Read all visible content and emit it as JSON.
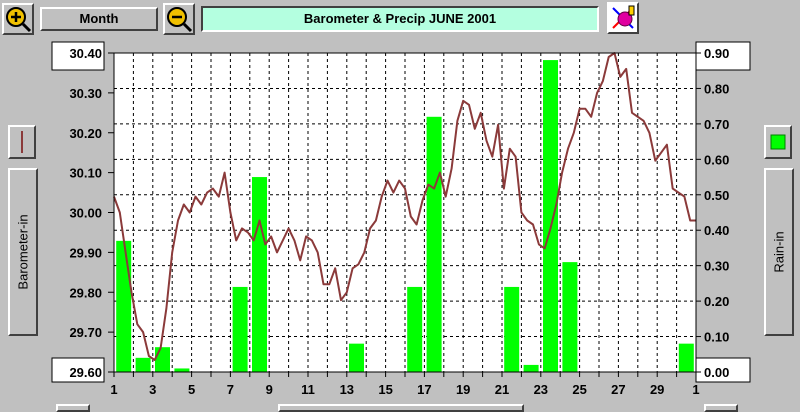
{
  "toolbar": {
    "zoom_in_icon": "zoom-in-magnifier-icon",
    "period_label": "Month",
    "zoom_out_icon": "zoom-out-magnifier-icon",
    "title": "Barometer & Precip  JUNE 2001",
    "paint_icon": "paint-palette-icon"
  },
  "side": {
    "left_label": "Barometer-in",
    "right_label": "Rain-in"
  },
  "colors": {
    "barometer": "#8b3a3a",
    "rain": "#00ff00",
    "title_bg": "#b4ffe0",
    "panel": "#c0c0c0",
    "plot_bg": "#ffffff"
  },
  "chart_data": {
    "type": "bar+line",
    "title": "Barometer & Precip  JUNE 2001",
    "x_tick_labels": [
      "1",
      "3",
      "5",
      "7",
      "9",
      "11",
      "13",
      "15",
      "17",
      "19",
      "21",
      "23",
      "25",
      "27",
      "29",
      "1"
    ],
    "xlim": [
      1,
      31
    ],
    "grid": true,
    "left_axis": {
      "label": "Barometer-in",
      "ylim": [
        29.6,
        30.4
      ],
      "tick_labels": [
        "30.40",
        "30.30",
        "30.20",
        "30.10",
        "30.00",
        "29.90",
        "29.80",
        "29.70",
        "29.60"
      ]
    },
    "right_axis": {
      "label": "Rain-in",
      "ylim": [
        0.0,
        0.9
      ],
      "tick_labels": [
        "0.90",
        "0.80",
        "0.70",
        "0.60",
        "0.50",
        "0.40",
        "0.30",
        "0.20",
        "0.10",
        "0.00"
      ]
    },
    "series": [
      {
        "type": "line",
        "axis": "left",
        "x": [
          1.0,
          1.3,
          1.6,
          1.9,
          2.2,
          2.5,
          2.8,
          3.1,
          3.4,
          3.7,
          4.0,
          4.3,
          4.6,
          4.9,
          5.2,
          5.5,
          5.8,
          6.1,
          6.4,
          6.7,
          7.0,
          7.3,
          7.6,
          7.9,
          8.2,
          8.5,
          8.8,
          9.1,
          9.4,
          9.7,
          10.0,
          10.3,
          10.6,
          10.9,
          11.2,
          11.5,
          11.8,
          12.1,
          12.4,
          12.7,
          13.0,
          13.3,
          13.6,
          13.9,
          14.2,
          14.5,
          14.8,
          15.1,
          15.4,
          15.7,
          16.0,
          16.3,
          16.6,
          16.9,
          17.2,
          17.5,
          17.8,
          18.1,
          18.4,
          18.7,
          19.0,
          19.3,
          19.6,
          19.9,
          20.2,
          20.5,
          20.8,
          21.1,
          21.4,
          21.7,
          22.0,
          22.3,
          22.6,
          22.9,
          23.2,
          23.5,
          23.8,
          24.1,
          24.4,
          24.7,
          25.0,
          25.3,
          25.6,
          25.9,
          26.2,
          26.5,
          26.8,
          27.1,
          27.4,
          27.7,
          28.0,
          28.3,
          28.6,
          28.9,
          29.2,
          29.5,
          29.8,
          30.1,
          30.4,
          30.7,
          31.0
        ],
        "y": [
          30.04,
          30.0,
          29.9,
          29.8,
          29.72,
          29.7,
          29.64,
          29.63,
          29.66,
          29.76,
          29.9,
          29.98,
          30.02,
          30.0,
          30.04,
          30.02,
          30.05,
          30.06,
          30.04,
          30.1,
          30.0,
          29.93,
          29.96,
          29.95,
          29.93,
          29.98,
          29.92,
          29.94,
          29.9,
          29.93,
          29.96,
          29.93,
          29.88,
          29.94,
          29.93,
          29.9,
          29.82,
          29.82,
          29.86,
          29.78,
          29.8,
          29.86,
          29.87,
          29.9,
          29.96,
          29.98,
          30.04,
          30.08,
          30.05,
          30.08,
          30.06,
          29.99,
          29.97,
          30.03,
          30.07,
          30.06,
          30.1,
          30.04,
          30.11,
          30.23,
          30.28,
          30.27,
          30.21,
          30.25,
          30.18,
          30.14,
          30.22,
          30.06,
          30.16,
          30.14,
          30.0,
          29.98,
          29.97,
          29.92,
          29.91,
          29.96,
          30.02,
          30.1,
          30.16,
          30.2,
          30.26,
          30.26,
          30.24,
          30.3,
          30.33,
          30.39,
          30.4,
          30.34,
          30.36,
          30.25,
          30.24,
          30.23,
          30.2,
          30.13,
          30.15,
          30.17,
          30.06,
          30.05,
          30.04,
          29.98,
          29.98
        ]
      },
      {
        "type": "bar",
        "axis": "right",
        "x": [
          1.5,
          2.5,
          3.5,
          4.5,
          5.5,
          6.5,
          7.5,
          8.5,
          9.5,
          10.5,
          11.5,
          12.5,
          13.5,
          14.5,
          15.5,
          16.5,
          17.5,
          18.5,
          19.5,
          20.5,
          21.5,
          22.5,
          23.5,
          24.5,
          25.5,
          26.5,
          27.5,
          28.5,
          29.5,
          30.5
        ],
        "values": [
          0.37,
          0.04,
          0.07,
          0.01,
          0.0,
          0.0,
          0.24,
          0.55,
          0.0,
          0.0,
          0.0,
          0.0,
          0.08,
          0.0,
          0.0,
          0.24,
          0.72,
          0.0,
          0.0,
          0.0,
          0.24,
          0.02,
          0.88,
          0.31,
          0.0,
          0.0,
          0.0,
          0.0,
          0.0,
          0.08
        ]
      }
    ]
  }
}
